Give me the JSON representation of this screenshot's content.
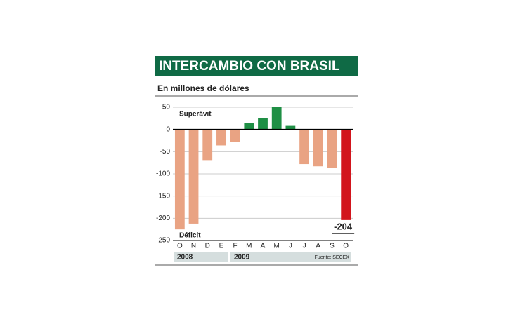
{
  "chart_data": {
    "type": "bar",
    "title": "INTERCAMBIO CON BRASIL",
    "subtitle": "En millones de dólares",
    "categories": [
      "O",
      "N",
      "D",
      "E",
      "F",
      "M",
      "A",
      "M",
      "J",
      "J",
      "A",
      "S",
      "O"
    ],
    "values": [
      -225,
      -212,
      -69,
      -36,
      -28,
      14,
      25,
      50,
      8,
      -78,
      -83,
      -87,
      -204
    ],
    "colors": [
      "#e9a383",
      "#e9a383",
      "#e9a383",
      "#e9a383",
      "#e9a383",
      "#1f8f45",
      "#1f8f45",
      "#1f8f45",
      "#1f8f45",
      "#e9a383",
      "#e9a383",
      "#e9a383",
      "#d2151d"
    ],
    "ylim": [
      -250,
      50
    ],
    "yticks": [
      50,
      0,
      -50,
      -100,
      -150,
      -200,
      -250
    ],
    "grid": true,
    "annotations": [
      "Superávit",
      "Déficit"
    ],
    "years": [
      "2008",
      "2009"
    ],
    "source": "Fuente: SECEX"
  }
}
